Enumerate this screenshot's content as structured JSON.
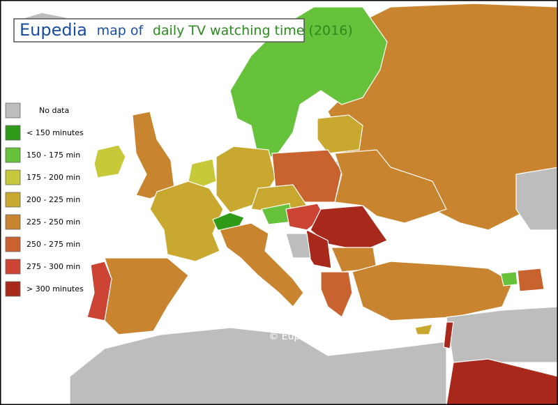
{
  "title": {
    "brand": "Eupedia",
    "part1": "map of",
    "part2": "daily TV watching time (2016)"
  },
  "legend": [
    {
      "label": "No data",
      "color": "#bdbdbd"
    },
    {
      "label": "< 150 minutes",
      "color": "#2e9a17"
    },
    {
      "label": "150 - 175 min",
      "color": "#66c23a"
    },
    {
      "label": "175 - 200 min",
      "color": "#c7c83a"
    },
    {
      "label": "200 - 225 min",
      "color": "#c9a830"
    },
    {
      "label": "225 - 250 min",
      "color": "#c8842e"
    },
    {
      "label": "250 - 275 min",
      "color": "#c8622e"
    },
    {
      "label": "275 - 300 min",
      "color": "#cc4433"
    },
    {
      "label": "> 300 minutes",
      "color": "#a8281c"
    }
  ],
  "credit": "© Eupedia.com"
}
